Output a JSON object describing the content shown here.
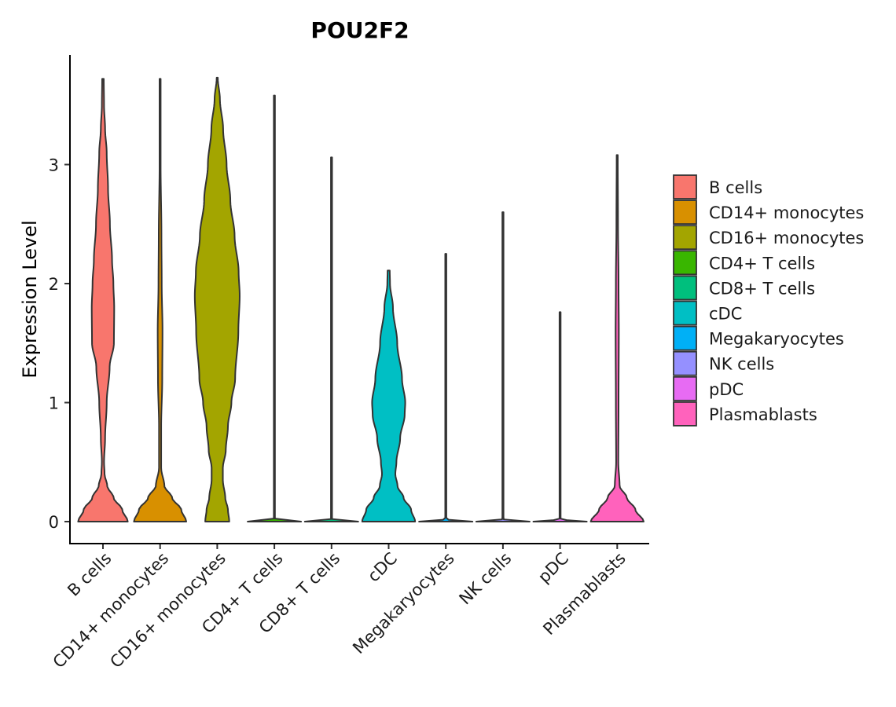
{
  "chart_data": {
    "type": "violin",
    "title": "POU2F2",
    "xlabel": "",
    "ylabel": "Expression Level",
    "ylim": [
      -0.18,
      3.9
    ],
    "yticks": [
      0,
      1,
      2,
      3
    ],
    "grid": false,
    "legend_position": "right",
    "categories": [
      "B cells",
      "CD14+ monocytes",
      "CD16+ monocytes",
      "CD4+ T cells",
      "CD8+ T cells",
      "cDC",
      "Megakaryocytes",
      "NK cells",
      "pDC",
      "Plasmablasts"
    ],
    "colors": [
      "#F8766D",
      "#D89000",
      "#A3A500",
      "#39B600",
      "#00BF7D",
      "#00BFC4",
      "#00B0F6",
      "#9590FF",
      "#E76BF3",
      "#FF62BC"
    ],
    "series": [
      {
        "name": "B cells",
        "max": 3.72,
        "profile": [
          [
            0,
            0.93
          ],
          [
            0.1,
            0.72
          ],
          [
            0.2,
            0.4
          ],
          [
            0.3,
            0.16
          ],
          [
            0.4,
            0.06
          ],
          [
            0.5,
            0.04
          ],
          [
            0.7,
            0.08
          ],
          [
            1.0,
            0.14
          ],
          [
            1.3,
            0.25
          ],
          [
            1.5,
            0.41
          ],
          [
            1.8,
            0.42
          ],
          [
            2.0,
            0.39
          ],
          [
            2.2,
            0.34
          ],
          [
            2.5,
            0.26
          ],
          [
            2.8,
            0.19
          ],
          [
            3.1,
            0.14
          ],
          [
            3.3,
            0.08
          ],
          [
            3.5,
            0.04
          ],
          [
            3.72,
            0.03
          ]
        ]
      },
      {
        "name": "CD14+ monocytes",
        "max": 3.72,
        "profile": [
          [
            0,
            0.98
          ],
          [
            0.1,
            0.79
          ],
          [
            0.2,
            0.45
          ],
          [
            0.3,
            0.16
          ],
          [
            0.45,
            0.04
          ],
          [
            0.8,
            0.04
          ],
          [
            1.2,
            0.08
          ],
          [
            1.6,
            0.09
          ],
          [
            2.0,
            0.06
          ],
          [
            2.4,
            0.05
          ],
          [
            3.0,
            0.02
          ],
          [
            3.5,
            0.01
          ],
          [
            3.72,
            0.01
          ]
        ]
      },
      {
        "name": "CD16+ monocytes",
        "max": 3.73,
        "profile": [
          [
            0,
            0.45
          ],
          [
            0.1,
            0.4
          ],
          [
            0.2,
            0.3
          ],
          [
            0.35,
            0.21
          ],
          [
            0.45,
            0.21
          ],
          [
            0.6,
            0.32
          ],
          [
            0.8,
            0.4
          ],
          [
            1.0,
            0.53
          ],
          [
            1.2,
            0.67
          ],
          [
            1.6,
            0.79
          ],
          [
            1.9,
            0.84
          ],
          [
            2.1,
            0.8
          ],
          [
            2.4,
            0.65
          ],
          [
            2.7,
            0.49
          ],
          [
            3.0,
            0.35
          ],
          [
            3.3,
            0.22
          ],
          [
            3.55,
            0.1
          ],
          [
            3.73,
            0.02
          ]
        ]
      },
      {
        "name": "CD4+ T cells",
        "max": 3.58,
        "profile": [
          [
            0,
            1.0
          ],
          [
            0.008,
            0.35
          ],
          [
            0.02,
            0.02
          ],
          [
            3.58,
            0.02
          ]
        ]
      },
      {
        "name": "CD8+ T cells",
        "max": 3.06,
        "profile": [
          [
            0,
            1.0
          ],
          [
            0.008,
            0.35
          ],
          [
            0.02,
            0.02
          ],
          [
            3.06,
            0.02
          ]
        ]
      },
      {
        "name": "cDC",
        "max": 2.11,
        "profile": [
          [
            0,
            0.99
          ],
          [
            0.1,
            0.84
          ],
          [
            0.2,
            0.56
          ],
          [
            0.3,
            0.33
          ],
          [
            0.4,
            0.25
          ],
          [
            0.5,
            0.29
          ],
          [
            0.7,
            0.43
          ],
          [
            0.9,
            0.6
          ],
          [
            1.0,
            0.62
          ],
          [
            1.2,
            0.5
          ],
          [
            1.5,
            0.32
          ],
          [
            1.8,
            0.16
          ],
          [
            2.0,
            0.05
          ],
          [
            2.11,
            0.04
          ]
        ]
      },
      {
        "name": "Megakaryocytes",
        "max": 2.25,
        "profile": [
          [
            0,
            1.0
          ],
          [
            0.008,
            0.35
          ],
          [
            0.02,
            0.02
          ],
          [
            2.25,
            0.02
          ]
        ]
      },
      {
        "name": "NK cells",
        "max": 2.6,
        "profile": [
          [
            0,
            1.0
          ],
          [
            0.008,
            0.35
          ],
          [
            0.02,
            0.02
          ],
          [
            2.6,
            0.02
          ]
        ]
      },
      {
        "name": "pDC",
        "max": 1.76,
        "profile": [
          [
            0,
            1.0
          ],
          [
            0.008,
            0.35
          ],
          [
            0.02,
            0.02
          ],
          [
            1.76,
            0.02
          ]
        ]
      },
      {
        "name": "Plasmablasts",
        "max": 3.08,
        "profile": [
          [
            0,
            0.99
          ],
          [
            0.1,
            0.68
          ],
          [
            0.2,
            0.36
          ],
          [
            0.3,
            0.09
          ],
          [
            0.5,
            0.04
          ],
          [
            1.0,
            0.05
          ],
          [
            1.6,
            0.06
          ],
          [
            2.0,
            0.05
          ],
          [
            2.5,
            0.03
          ],
          [
            3.08,
            0.02
          ]
        ]
      }
    ]
  }
}
